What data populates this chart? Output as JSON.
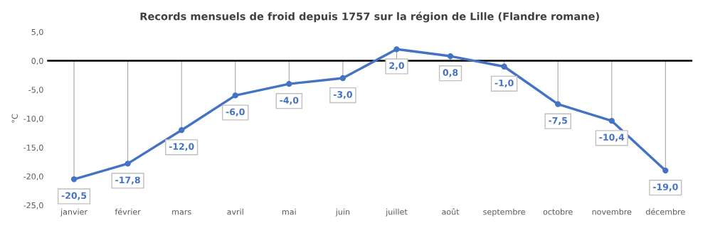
{
  "chart_data": {
    "type": "line",
    "title": "Records mensuels de froid depuis 1757 sur la région de Lille (Flandre romane)",
    "ylabel": "°C",
    "categories": [
      "janvier",
      "février",
      "mars",
      "avril",
      "mai",
      "juin",
      "juillet",
      "août",
      "septembre",
      "octobre",
      "novembre",
      "décembre"
    ],
    "series": [
      {
        "color": "#4472c4",
        "values": [
          -20.5,
          -17.8,
          -12.0,
          -6.0,
          -4.0,
          -3.0,
          2.0,
          0.8,
          -1.0,
          -7.5,
          -10.4,
          -19.0
        ],
        "errors": [
          [
            -20.5,
            0
          ],
          [
            -17.8,
            0
          ],
          [
            -12.0,
            0
          ],
          [
            -6.0,
            0
          ],
          [
            -4.0,
            0
          ],
          [
            -3.0,
            0
          ],
          [
            0,
            2.0
          ],
          [
            0,
            0.8
          ],
          [
            -1.0,
            0
          ],
          [
            -7.5,
            0
          ],
          [
            -10.4,
            0
          ],
          [
            -19.0,
            0
          ]
        ],
        "value_labels": [
          "-20,5",
          "-17,8",
          "-12,0",
          "-6,0",
          "-4,0",
          "-3,0",
          "2,0",
          "0,8",
          "-1,0",
          "-7,5",
          "-10,4",
          "-19,0"
        ]
      }
    ],
    "ylim": [
      -25,
      5
    ],
    "yticks": [
      {
        "value": 5,
        "label": "5,0"
      },
      {
        "value": 0,
        "label": "0,0"
      },
      {
        "value": -5,
        "label": "-5,0"
      },
      {
        "value": -10,
        "label": "-10,0"
      },
      {
        "value": -15,
        "label": "-15,0"
      },
      {
        "value": -20,
        "label": "-20,0"
      },
      {
        "value": -25,
        "label": "-25,0"
      }
    ],
    "ref_lines": [
      {
        "axis": "y",
        "value": 0,
        "color": "#000000"
      }
    ],
    "grid": false,
    "legend": false,
    "marker": "circle",
    "line_style": "solid"
  }
}
